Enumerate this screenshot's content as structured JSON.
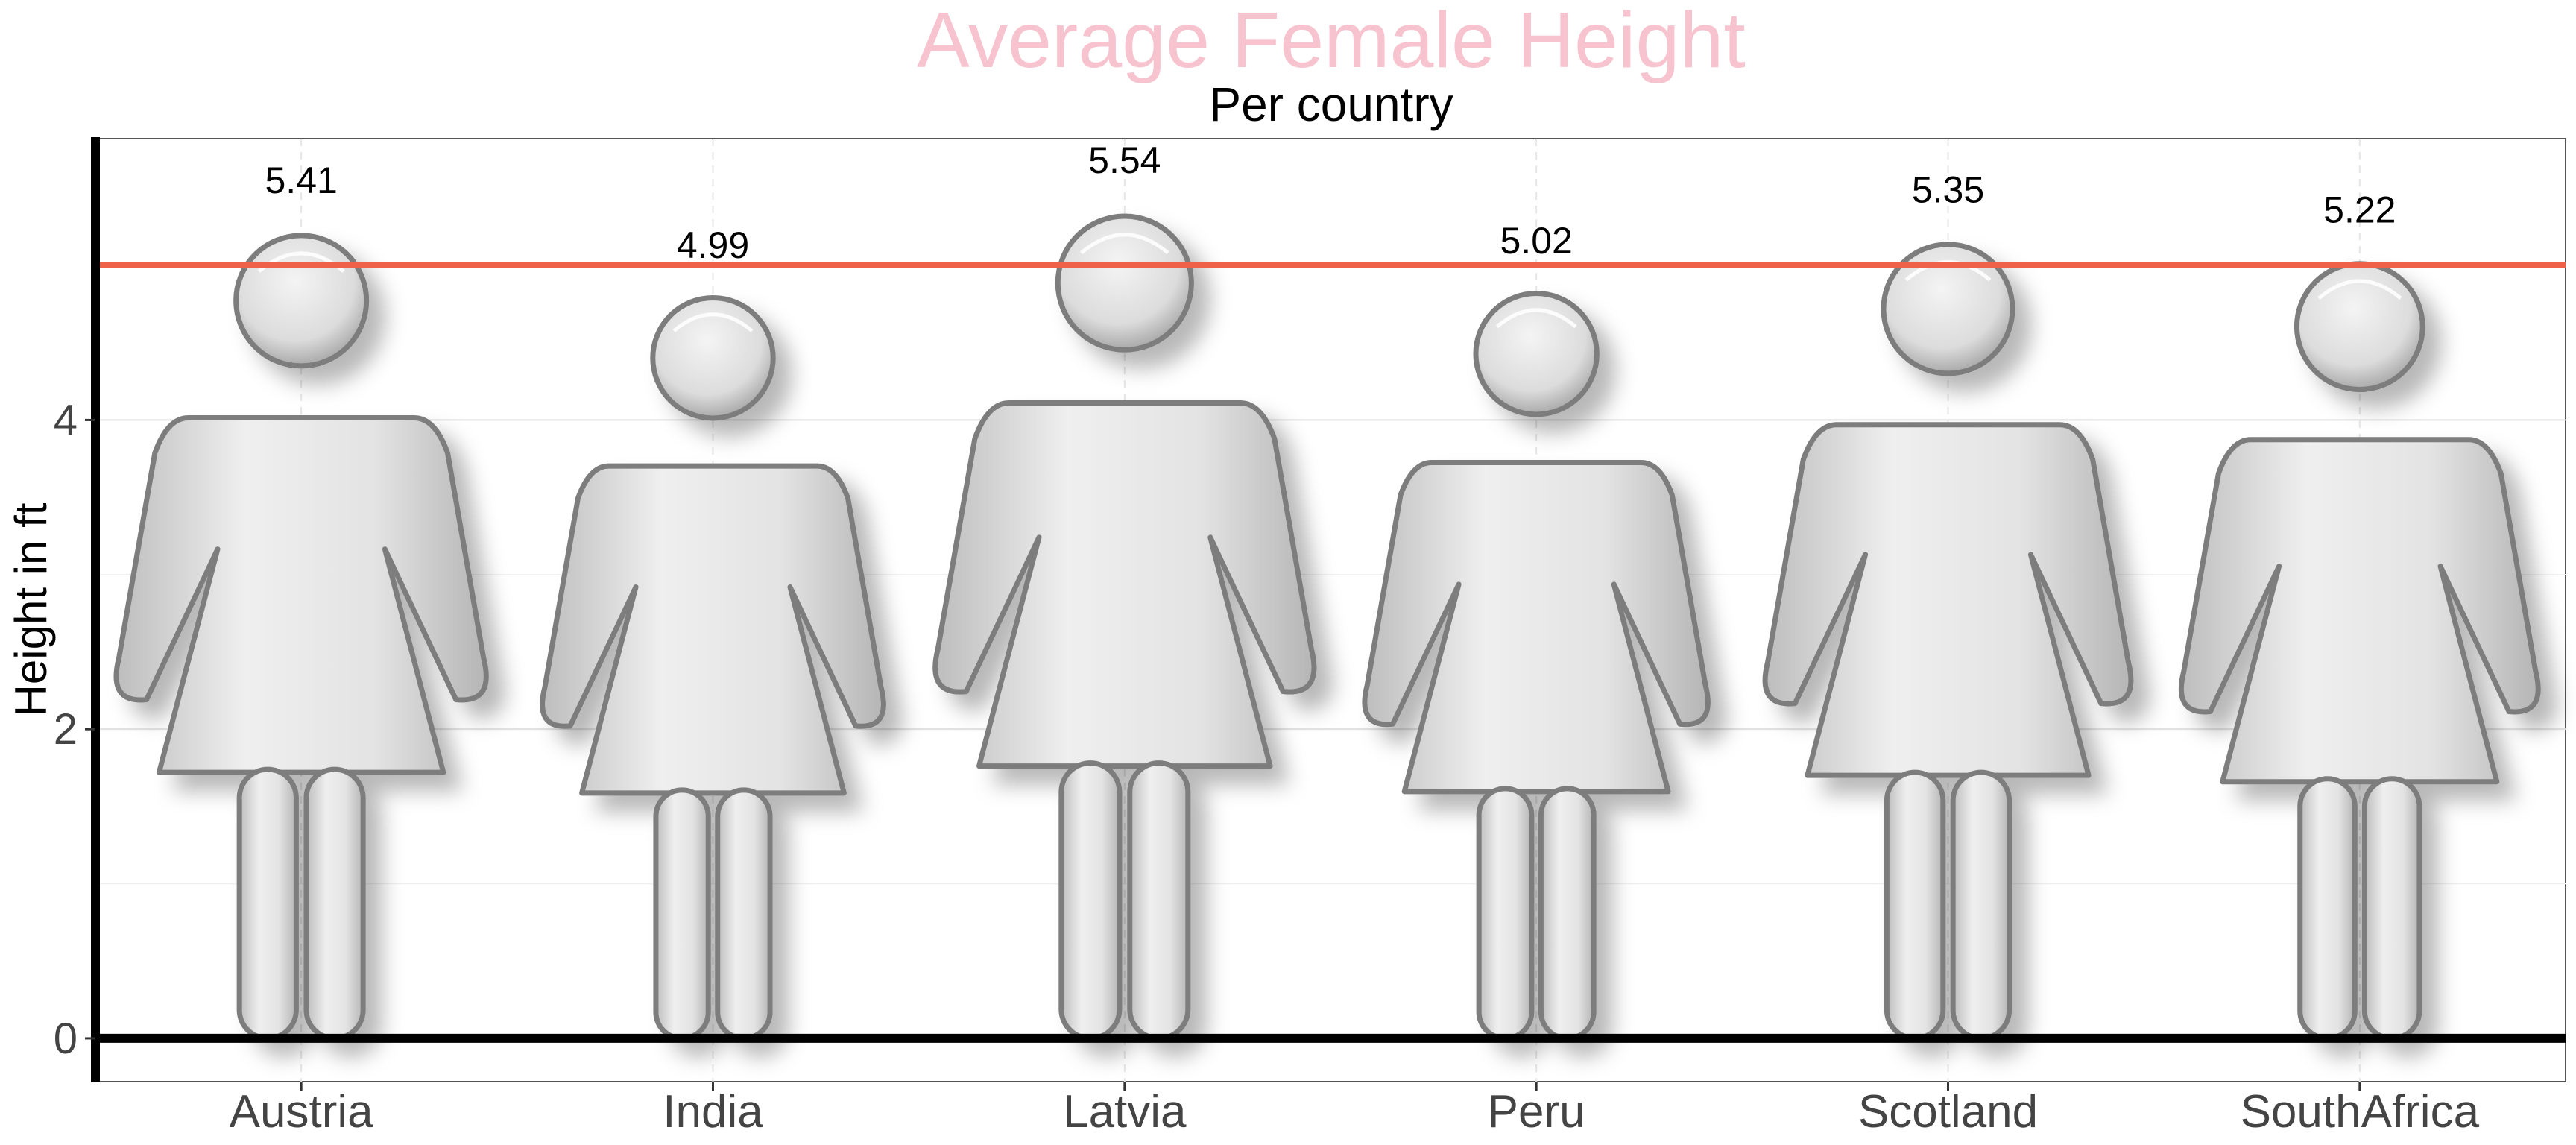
{
  "chart_data": {
    "type": "bar",
    "title": "Average Female Height",
    "subtitle": "Per country",
    "xlabel": "",
    "ylabel": "Height in ft",
    "categories": [
      "Austria",
      "India",
      "Latvia",
      "Peru",
      "Scotland",
      "SouthAfrica"
    ],
    "values": [
      5.41,
      4.99,
      5.54,
      5.02,
      5.35,
      5.22
    ],
    "data_labels": [
      "5.41",
      "4.99",
      "5.54",
      "5.02",
      "5.35",
      "5.22"
    ],
    "yticks": [
      0,
      2,
      4
    ],
    "ytick_labels": [
      "0",
      "2",
      "4"
    ],
    "ylim": [
      -0.28,
      5.82
    ],
    "reference_line": {
      "y": 5,
      "color": "#f0614a"
    },
    "grid": true,
    "legend": "none",
    "colors": {
      "title": "#f7c3cf",
      "figure": "#d6d6d6",
      "figure_outline": "#7d7d7d",
      "axis": "#000000"
    },
    "mark_icon": "female-figure-icon"
  }
}
